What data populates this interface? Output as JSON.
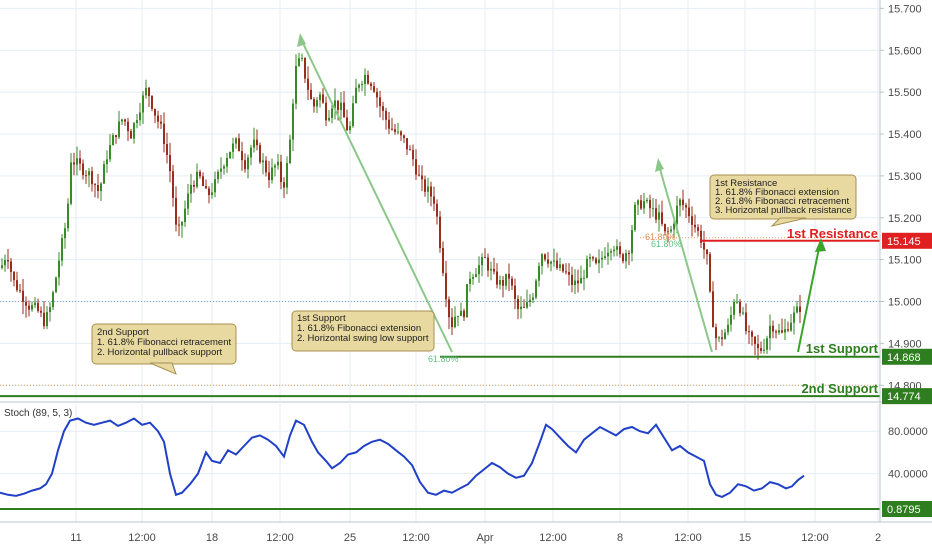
{
  "chart_data": [
    {
      "type": "candlestick",
      "ylim": [
        14.76,
        15.72
      ],
      "y_ticks": [
        15.7,
        15.6,
        15.5,
        15.4,
        15.3,
        15.2,
        15.1,
        15.0,
        14.9,
        14.8
      ],
      "y_tick_labels": [
        "15.700",
        "15.600",
        "15.500",
        "15.400",
        "15.300",
        "15.200",
        "15.100",
        "15.000",
        "14.900",
        "14.800"
      ],
      "x_tick_labels": [
        "11",
        "12:00",
        "18",
        "12:00",
        "25",
        "12:00",
        "Apr",
        "12:00",
        "8",
        "12:00",
        "15",
        "12:00",
        "2"
      ],
      "current_price": 15.0,
      "price_path": [
        [
          0,
          15.08
        ],
        [
          6,
          15.12
        ],
        [
          12,
          15.05
        ],
        [
          20,
          15.02
        ],
        [
          28,
          14.99
        ],
        [
          36,
          14.98
        ],
        [
          44,
          14.95
        ],
        [
          50,
          14.99
        ],
        [
          58,
          15.1
        ],
        [
          66,
          15.2
        ],
        [
          70,
          15.34
        ],
        [
          80,
          15.32
        ],
        [
          90,
          15.3
        ],
        [
          98,
          15.26
        ],
        [
          106,
          15.35
        ],
        [
          114,
          15.4
        ],
        [
          122,
          15.44
        ],
        [
          130,
          15.4
        ],
        [
          138,
          15.46
        ],
        [
          146,
          15.51
        ],
        [
          154,
          15.45
        ],
        [
          162,
          15.4
        ],
        [
          170,
          15.3
        ],
        [
          176,
          15.15
        ],
        [
          182,
          15.2
        ],
        [
          190,
          15.28
        ],
        [
          198,
          15.3
        ],
        [
          206,
          15.25
        ],
        [
          214,
          15.28
        ],
        [
          220,
          15.32
        ],
        [
          228,
          15.36
        ],
        [
          236,
          15.38
        ],
        [
          244,
          15.33
        ],
        [
          252,
          15.38
        ],
        [
          260,
          15.34
        ],
        [
          268,
          15.3
        ],
        [
          276,
          15.33
        ],
        [
          282,
          15.27
        ],
        [
          288,
          15.35
        ],
        [
          294,
          15.55
        ],
        [
          300,
          15.58
        ],
        [
          306,
          15.52
        ],
        [
          312,
          15.46
        ],
        [
          318,
          15.5
        ],
        [
          326,
          15.44
        ],
        [
          332,
          15.48
        ],
        [
          340,
          15.46
        ],
        [
          348,
          15.4
        ],
        [
          356,
          15.52
        ],
        [
          364,
          15.54
        ],
        [
          372,
          15.52
        ],
        [
          380,
          15.46
        ],
        [
          388,
          15.42
        ],
        [
          396,
          15.4
        ],
        [
          404,
          15.38
        ],
        [
          412,
          15.34
        ],
        [
          420,
          15.28
        ],
        [
          428,
          15.26
        ],
        [
          434,
          15.24
        ],
        [
          440,
          15.12
        ],
        [
          446,
          15.0
        ],
        [
          450,
          14.94
        ],
        [
          456,
          14.98
        ],
        [
          462,
          14.96
        ],
        [
          468,
          15.06
        ],
        [
          476,
          15.08
        ],
        [
          484,
          15.1
        ],
        [
          492,
          15.06
        ],
        [
          500,
          15.04
        ],
        [
          508,
          15.06
        ],
        [
          516,
          14.98
        ],
        [
          524,
          14.98
        ],
        [
          532,
          15.02
        ],
        [
          540,
          15.12
        ],
        [
          548,
          15.1
        ],
        [
          556,
          15.08
        ],
        [
          564,
          15.07
        ],
        [
          572,
          15.04
        ],
        [
          580,
          15.05
        ],
        [
          588,
          15.1
        ],
        [
          596,
          15.08
        ],
        [
          604,
          15.12
        ],
        [
          612,
          15.14
        ],
        [
          620,
          15.1
        ],
        [
          628,
          15.13
        ],
        [
          634,
          15.22
        ],
        [
          642,
          15.24
        ],
        [
          650,
          15.22
        ],
        [
          658,
          15.2
        ],
        [
          664,
          15.16
        ],
        [
          670,
          15.17
        ],
        [
          678,
          15.24
        ],
        [
          686,
          15.22
        ],
        [
          694,
          15.18
        ],
        [
          700,
          15.15
        ],
        [
          706,
          15.1
        ],
        [
          710,
          14.98
        ],
        [
          716,
          14.9
        ],
        [
          722,
          14.92
        ],
        [
          728,
          14.94
        ],
        [
          734,
          15.02
        ],
        [
          740,
          14.98
        ],
        [
          746,
          14.92
        ],
        [
          752,
          14.9
        ],
        [
          758,
          14.88
        ],
        [
          764,
          14.9
        ],
        [
          770,
          14.95
        ],
        [
          776,
          14.93
        ],
        [
          782,
          14.92
        ],
        [
          788,
          14.95
        ],
        [
          794,
          14.97
        ],
        [
          800,
          14.99
        ]
      ],
      "levels": [
        {
          "name": "1st Resistance",
          "value": 15.145,
          "label": "15.145",
          "color": "#e02020"
        },
        {
          "name": "1st Support",
          "value": 14.868,
          "label": "14.868",
          "color": "#2e7d1e"
        },
        {
          "name": "2nd Support",
          "value": 14.774,
          "label": "14.774",
          "color": "#2e7d1e"
        }
      ],
      "dotted_level": 14.8
    },
    {
      "type": "line",
      "title": "Stoch (89, 5, 3)",
      "ylim": [
        0,
        100
      ],
      "y_ticks": [
        80,
        40,
        0.8795
      ],
      "y_tick_labels": [
        "80.0000",
        "40.0000",
        "0.8795"
      ],
      "series": [
        {
          "color": "#2040c8",
          "values": [
            [
              0,
              22
            ],
            [
              8,
              20
            ],
            [
              16,
              19
            ],
            [
              24,
              21
            ],
            [
              32,
              24
            ],
            [
              40,
              26
            ],
            [
              46,
              30
            ],
            [
              52,
              40
            ],
            [
              58,
              62
            ],
            [
              64,
              80
            ],
            [
              70,
              90
            ],
            [
              78,
              92
            ],
            [
              86,
              88
            ],
            [
              94,
              86
            ],
            [
              102,
              88
            ],
            [
              110,
              90
            ],
            [
              118,
              85
            ],
            [
              126,
              88
            ],
            [
              134,
              92
            ],
            [
              142,
              86
            ],
            [
              150,
              88
            ],
            [
              158,
              80
            ],
            [
              164,
              70
            ],
            [
              170,
              40
            ],
            [
              176,
              20
            ],
            [
              182,
              22
            ],
            [
              190,
              30
            ],
            [
              198,
              40
            ],
            [
              206,
              60
            ],
            [
              212,
              52
            ],
            [
              220,
              50
            ],
            [
              228,
              62
            ],
            [
              236,
              58
            ],
            [
              244,
              66
            ],
            [
              252,
              74
            ],
            [
              260,
              76
            ],
            [
              268,
              72
            ],
            [
              276,
              66
            ],
            [
              284,
              56
            ],
            [
              290,
              76
            ],
            [
              296,
              90
            ],
            [
              304,
              86
            ],
            [
              312,
              70
            ],
            [
              318,
              60
            ],
            [
              326,
              52
            ],
            [
              332,
              45
            ],
            [
              340,
              50
            ],
            [
              348,
              58
            ],
            [
              356,
              60
            ],
            [
              364,
              66
            ],
            [
              372,
              70
            ],
            [
              380,
              72
            ],
            [
              388,
              68
            ],
            [
              396,
              62
            ],
            [
              404,
              56
            ],
            [
              412,
              48
            ],
            [
              420,
              32
            ],
            [
              428,
              22
            ],
            [
              436,
              20
            ],
            [
              444,
              24
            ],
            [
              452,
              22
            ],
            [
              460,
              26
            ],
            [
              468,
              30
            ],
            [
              476,
              38
            ],
            [
              484,
              44
            ],
            [
              492,
              50
            ],
            [
              500,
              46
            ],
            [
              508,
              40
            ],
            [
              516,
              36
            ],
            [
              524,
              38
            ],
            [
              532,
              50
            ],
            [
              540,
              70
            ],
            [
              546,
              86
            ],
            [
              552,
              82
            ],
            [
              560,
              74
            ],
            [
              568,
              66
            ],
            [
              576,
              60
            ],
            [
              584,
              72
            ],
            [
              592,
              78
            ],
            [
              600,
              84
            ],
            [
              608,
              80
            ],
            [
              616,
              76
            ],
            [
              624,
              82
            ],
            [
              632,
              84
            ],
            [
              640,
              80
            ],
            [
              648,
              78
            ],
            [
              656,
              86
            ],
            [
              664,
              74
            ],
            [
              672,
              62
            ],
            [
              680,
              66
            ],
            [
              688,
              60
            ],
            [
              696,
              56
            ],
            [
              704,
              52
            ],
            [
              710,
              30
            ],
            [
              716,
              20
            ],
            [
              722,
              18
            ],
            [
              730,
              22
            ],
            [
              738,
              30
            ],
            [
              746,
              28
            ],
            [
              754,
              24
            ],
            [
              762,
              26
            ],
            [
              770,
              32
            ],
            [
              778,
              30
            ],
            [
              786,
              26
            ],
            [
              792,
              28
            ],
            [
              798,
              34
            ],
            [
              804,
              38
            ]
          ]
        }
      ],
      "support_value": 0.8795
    }
  ],
  "annotations": {
    "second_support_box": [
      "2nd Support",
      "1. 61.8% Fibonacci retracement",
      "2. Horizontal pullback support"
    ],
    "first_support_box": [
      "1st Support",
      "1. 61.8% Fibonacci extension",
      "2.  Horizontal swing low support"
    ],
    "first_resistance_box": [
      "1st Resistance",
      "1. 61.8% Fibonacci extension",
      "2. 61.8% Fibonacci retracement",
      "3. Horizontal pullback resistance"
    ],
    "fib_low_label": "61.80%",
    "fib_high_label_a": "61.80%",
    "fib_high_label_b": "61.80%",
    "level_label_resistance": "1st Resistance",
    "level_label_support1": "1st Support",
    "level_label_support2": "2nd Support"
  },
  "colors": {
    "bull": "#3a8a2a",
    "bear": "#9a2e1e",
    "note_fill": "#e8d9a0",
    "note_stroke": "#a89050",
    "arrow": "#8cc78a",
    "grid": "#e4eef4"
  }
}
